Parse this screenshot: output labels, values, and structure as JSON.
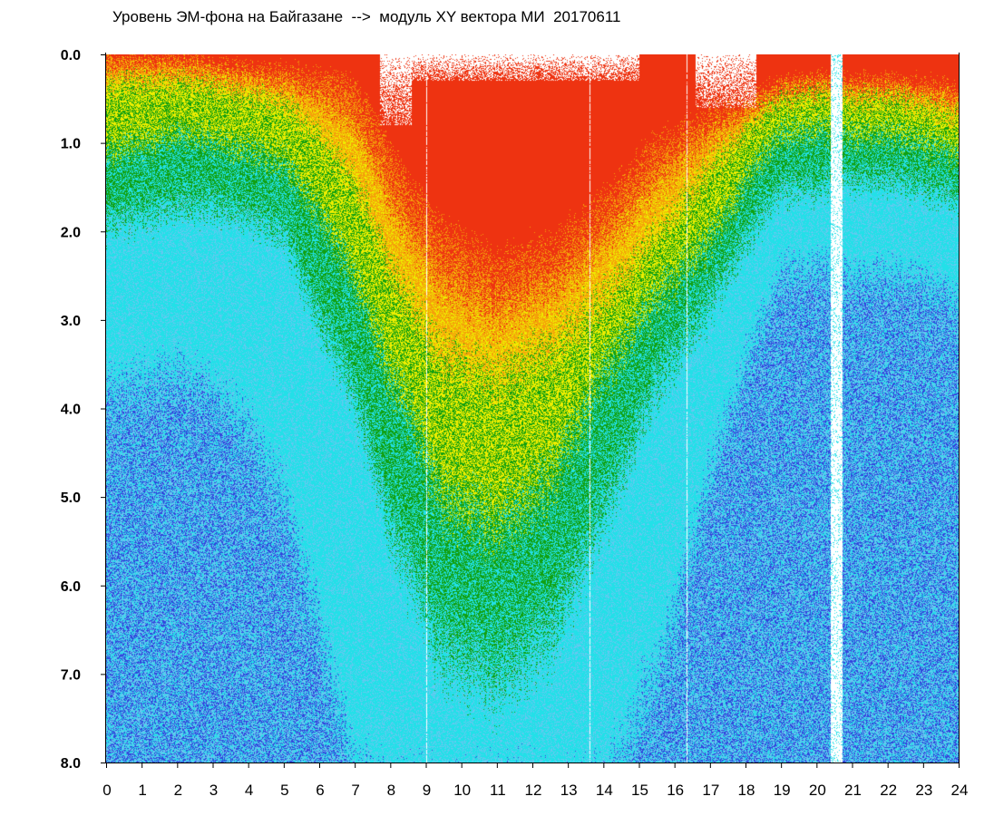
{
  "chart_data": {
    "type": "heatmap",
    "title": "Уровень ЭМ-фона на Байгазане  -->  модуль XY вектора МИ  20170611",
    "xlabel": "",
    "ylabel": "",
    "x_ticks": [
      "0",
      "1",
      "2",
      "3",
      "4",
      "5",
      "6",
      "7",
      "8",
      "9",
      "10",
      "11",
      "12",
      "13",
      "14",
      "15",
      "16",
      "17",
      "18",
      "19",
      "20",
      "21",
      "22",
      "23",
      "24"
    ],
    "y_ticks": [
      "0.0",
      "1.0",
      "2.0",
      "3.0",
      "4.0",
      "5.0",
      "6.0",
      "7.0",
      "8.0"
    ],
    "xlim": [
      0,
      24
    ],
    "ylim": [
      0,
      8
    ],
    "y_inverted": true,
    "grid": false,
    "colors": {
      "red": "#ee3311",
      "orange": "#f5a00a",
      "yellow": "#eeee00",
      "green": "#11a011",
      "cyan": "#22e0e8",
      "light_blue": "#66c8f0",
      "blue": "#3344dd",
      "gap": "#ffffff"
    },
    "boundaries_by_hour": [
      {
        "x": 0,
        "red": 0.05,
        "yellow": 0.35,
        "green": 1.1,
        "cyan": 1.9,
        "blue": 3.8
      },
      {
        "x": 1,
        "red": 0.05,
        "yellow": 0.3,
        "green": 1.0,
        "cyan": 1.8,
        "blue": 3.7
      },
      {
        "x": 2,
        "red": 0.05,
        "yellow": 0.3,
        "green": 0.9,
        "cyan": 1.7,
        "blue": 3.6
      },
      {
        "x": 3,
        "red": 0.1,
        "yellow": 0.35,
        "green": 0.95,
        "cyan": 1.7,
        "blue": 3.8
      },
      {
        "x": 4,
        "red": 0.15,
        "yellow": 0.45,
        "green": 1.05,
        "cyan": 1.8,
        "blue": 4.2
      },
      {
        "x": 5,
        "red": 0.2,
        "yellow": 0.55,
        "green": 1.2,
        "cyan": 2.0,
        "blue": 5.0
      },
      {
        "x": 6,
        "red": 0.25,
        "yellow": 0.9,
        "green": 1.8,
        "cyan": 3.0,
        "blue": 6.5
      },
      {
        "x": 7,
        "red": 0.35,
        "yellow": 1.4,
        "green": 2.5,
        "cyan": 3.8,
        "blue": 8.2
      },
      {
        "x": 7.8,
        "red": 0.9,
        "yellow": 2.2,
        "green": 3.4,
        "cyan": 5.0,
        "blue": 8.5
      },
      {
        "x": 8.5,
        "red": 1.5,
        "yellow": 2.8,
        "green": 4.0,
        "cyan": 5.8,
        "blue": 8.5
      },
      {
        "x": 9.5,
        "red": 2.0,
        "yellow": 3.4,
        "green": 5.0,
        "cyan": 6.7,
        "blue": 8.5
      },
      {
        "x": 11,
        "red": 2.4,
        "yellow": 3.6,
        "green": 5.3,
        "cyan": 7.0,
        "blue": 8.5
      },
      {
        "x": 12.5,
        "red": 2.2,
        "yellow": 3.3,
        "green": 4.8,
        "cyan": 6.5,
        "blue": 8.5
      },
      {
        "x": 14,
        "red": 1.7,
        "yellow": 2.8,
        "green": 3.6,
        "cyan": 5.2,
        "blue": 8.5
      },
      {
        "x": 15.5,
        "red": 1.0,
        "yellow": 2.0,
        "green": 2.7,
        "cyan": 3.7,
        "blue": 7.0
      },
      {
        "x": 17,
        "red": 0.7,
        "yellow": 1.3,
        "green": 2.1,
        "cyan": 2.8,
        "blue": 4.8
      },
      {
        "x": 18,
        "red": 0.55,
        "yellow": 0.85,
        "green": 1.4,
        "cyan": 2.1,
        "blue": 3.5
      },
      {
        "x": 19,
        "red": 0.35,
        "yellow": 0.5,
        "green": 0.9,
        "cyan": 1.5,
        "blue": 2.5
      },
      {
        "x": 20,
        "red": 0.3,
        "yellow": 0.45,
        "green": 0.85,
        "cyan": 1.5,
        "blue": 2.4
      },
      {
        "x": 21,
        "red": 0.3,
        "yellow": 0.5,
        "green": 0.9,
        "cyan": 1.4,
        "blue": 2.5
      },
      {
        "x": 22,
        "red": 0.3,
        "yellow": 0.5,
        "green": 0.9,
        "cyan": 1.4,
        "blue": 2.5
      },
      {
        "x": 23,
        "red": 0.35,
        "yellow": 0.6,
        "green": 1.0,
        "cyan": 1.5,
        "blue": 2.6
      },
      {
        "x": 24,
        "red": 0.4,
        "yellow": 0.7,
        "green": 1.1,
        "cyan": 1.6,
        "blue": 2.8
      }
    ],
    "saturated_regions": [
      {
        "x_from": 7.7,
        "x_to": 8.6,
        "y_from": 0.0,
        "y_to": 0.8
      },
      {
        "x_from": 8.6,
        "x_to": 15.0,
        "y_from": 0.0,
        "y_to": 0.3
      },
      {
        "x_from": 16.6,
        "x_to": 18.3,
        "y_from": 0.0,
        "y_to": 0.6
      }
    ],
    "gap_intervals": [
      {
        "x_from": 20.4,
        "x_to": 20.7
      }
    ],
    "thin_gaps_at_hour": [
      9.0,
      13.6,
      16.35
    ]
  }
}
